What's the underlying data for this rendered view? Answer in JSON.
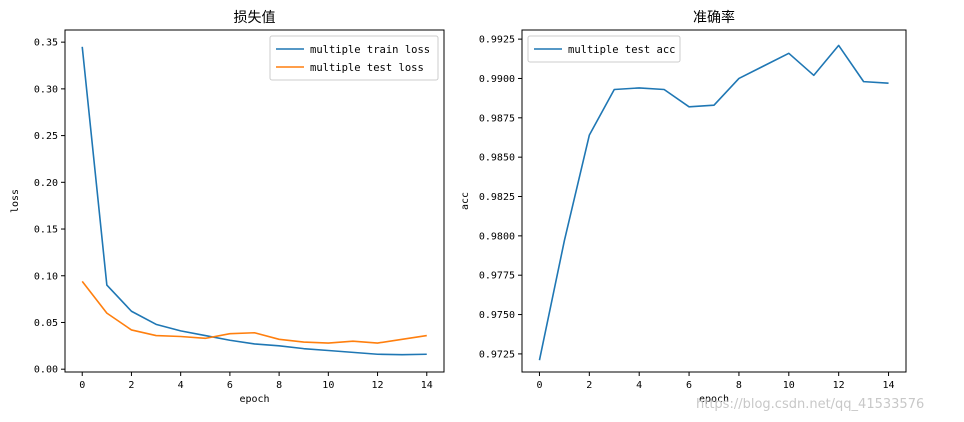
{
  "chart_data": [
    {
      "type": "line",
      "title": "损失值",
      "xlabel": "epoch",
      "ylabel": "loss",
      "x": [
        0,
        1,
        2,
        3,
        4,
        5,
        6,
        7,
        8,
        9,
        10,
        11,
        12,
        13,
        14
      ],
      "xlim": [
        -0.7,
        14.7
      ],
      "ylim": [
        -0.003,
        0.363
      ],
      "xticks": [
        0,
        2,
        4,
        6,
        8,
        10,
        12,
        14
      ],
      "xtick_labels": [
        "0",
        "2",
        "4",
        "6",
        "8",
        "10",
        "12",
        "14"
      ],
      "yticks": [
        0.0,
        0.05,
        0.1,
        0.15,
        0.2,
        0.25,
        0.3,
        0.35
      ],
      "ytick_labels": [
        "0.00",
        "0.05",
        "0.10",
        "0.15",
        "0.20",
        "0.25",
        "0.30",
        "0.35"
      ],
      "legend_position": "top-right",
      "grid": false,
      "series": [
        {
          "name": "multiple train loss",
          "color": "#1f77b4",
          "values": [
            0.345,
            0.09,
            0.062,
            0.048,
            0.041,
            0.036,
            0.031,
            0.027,
            0.025,
            0.022,
            0.02,
            0.018,
            0.016,
            0.0155,
            0.016
          ]
        },
        {
          "name": "multiple test loss",
          "color": "#ff7f0e",
          "values": [
            0.094,
            0.06,
            0.042,
            0.036,
            0.035,
            0.033,
            0.038,
            0.039,
            0.032,
            0.029,
            0.028,
            0.03,
            0.028,
            0.032,
            0.036
          ]
        }
      ]
    },
    {
      "type": "line",
      "title": "准确率",
      "xlabel": "epoch",
      "ylabel": "acc",
      "x": [
        0,
        1,
        2,
        3,
        4,
        5,
        6,
        7,
        8,
        9,
        10,
        11,
        12,
        13,
        14
      ],
      "xlim": [
        -0.7,
        14.7
      ],
      "ylim": [
        0.97135,
        0.99308
      ],
      "xticks": [
        0,
        2,
        4,
        6,
        8,
        10,
        12,
        14
      ],
      "xtick_labels": [
        "0",
        "2",
        "4",
        "6",
        "8",
        "10",
        "12",
        "14"
      ],
      "yticks": [
        0.9725,
        0.975,
        0.9775,
        0.98,
        0.9825,
        0.985,
        0.9875,
        0.99,
        0.9925
      ],
      "ytick_labels": [
        "0.9725",
        "0.9750",
        "0.9775",
        "0.9800",
        "0.9825",
        "0.9850",
        "0.9875",
        "0.9900",
        "0.9925"
      ],
      "legend_position": "top-left",
      "grid": false,
      "series": [
        {
          "name": "multiple test acc",
          "color": "#1f77b4",
          "values": [
            0.9721,
            0.9797,
            0.9864,
            0.9893,
            0.9894,
            0.9893,
            0.9882,
            0.9883,
            0.99,
            0.9908,
            0.9916,
            0.9902,
            0.9921,
            0.9898,
            0.9897
          ]
        }
      ]
    }
  ],
  "watermark": "https://blog.csdn.net/qq_41533576"
}
